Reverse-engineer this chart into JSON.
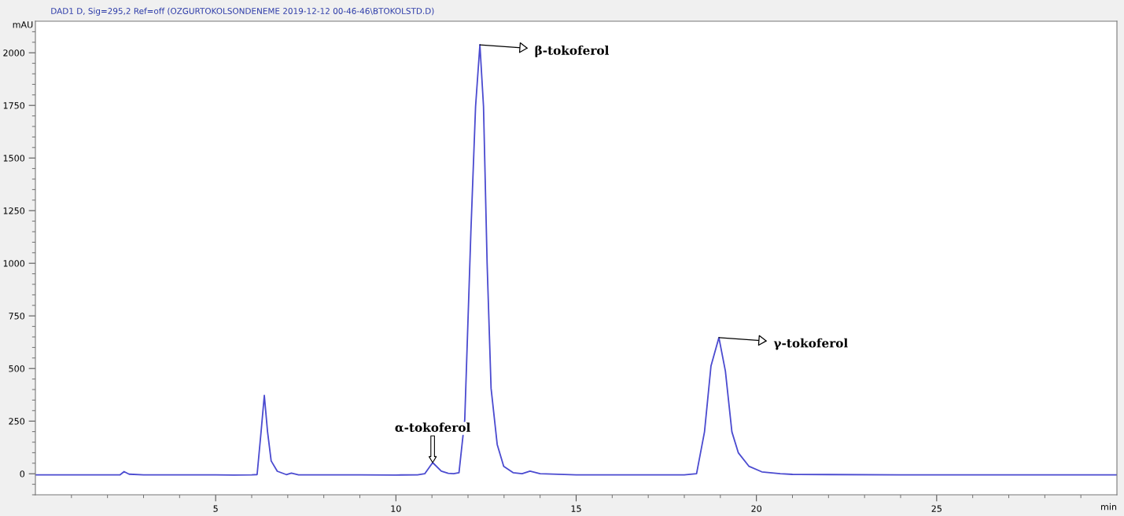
{
  "chart_data": {
    "type": "line",
    "title": "DAD1 D, Sig=295,2 Ref=off (OZGURTOKOLSONDENEME 2019-12-12 00-46-46\\BTOKOLSTD.D)",
    "xlabel": "min",
    "ylabel": "mAU",
    "xlim": [
      0,
      30
    ],
    "ylim": [
      -100,
      2150
    ],
    "xticks": [
      {
        "value": 1,
        "label": null
      },
      {
        "value": 2,
        "label": null
      },
      {
        "value": 3,
        "label": null
      },
      {
        "value": 4,
        "label": null
      },
      5,
      {
        "value": 6,
        "label": null
      },
      {
        "value": 7,
        "label": null
      },
      {
        "value": 8,
        "label": null
      },
      {
        "value": 9,
        "label": null
      },
      10,
      {
        "value": 11,
        "label": null
      },
      {
        "value": 12,
        "label": null
      },
      {
        "value": 13,
        "label": null
      },
      {
        "value": 14,
        "label": null
      },
      15,
      {
        "value": 16,
        "label": null
      },
      {
        "value": 17,
        "label": null
      },
      {
        "value": 18,
        "label": null
      },
      {
        "value": 19,
        "label": null
      },
      20,
      {
        "value": 21,
        "label": null
      },
      {
        "value": 22,
        "label": null
      },
      {
        "value": 23,
        "label": null
      },
      {
        "value": 24,
        "label": null
      },
      25,
      {
        "value": 26,
        "label": null
      },
      {
        "value": 27,
        "label": null
      },
      {
        "value": 28,
        "label": null
      },
      {
        "value": 29,
        "label": null
      }
    ],
    "yticks": [
      {
        "value": -100,
        "label": null
      },
      {
        "value": -50,
        "label": null
      },
      0,
      {
        "value": 50,
        "label": null
      },
      {
        "value": 100,
        "label": null
      },
      {
        "value": 150,
        "label": null
      },
      {
        "value": 200,
        "label": null
      },
      250,
      {
        "value": 300,
        "label": null
      },
      {
        "value": 350,
        "label": null
      },
      {
        "value": 400,
        "label": null
      },
      {
        "value": 450,
        "label": null
      },
      500,
      {
        "value": 550,
        "label": null
      },
      {
        "value": 600,
        "label": null
      },
      {
        "value": 650,
        "label": null
      },
      {
        "value": 700,
        "label": null
      },
      750,
      {
        "value": 800,
        "label": null
      },
      {
        "value": 850,
        "label": null
      },
      {
        "value": 900,
        "label": null
      },
      {
        "value": 950,
        "label": null
      },
      1000,
      {
        "value": 1050,
        "label": null
      },
      {
        "value": 1100,
        "label": null
      },
      {
        "value": 1150,
        "label": null
      },
      {
        "value": 1200,
        "label": null
      },
      1250,
      {
        "value": 1300,
        "label": null
      },
      {
        "value": 1350,
        "label": null
      },
      {
        "value": 1400,
        "label": null
      },
      {
        "value": 1450,
        "label": null
      },
      1500,
      {
        "value": 1550,
        "label": null
      },
      {
        "value": 1600,
        "label": null
      },
      {
        "value": 1650,
        "label": null
      },
      {
        "value": 1700,
        "label": null
      },
      1750,
      {
        "value": 1800,
        "label": null
      },
      {
        "value": 1850,
        "label": null
      },
      {
        "value": 1900,
        "label": null
      },
      {
        "value": 1950,
        "label": null
      },
      2000,
      {
        "value": 2050,
        "label": null
      },
      {
        "value": 2100,
        "label": null
      }
    ],
    "grid": false,
    "series": [
      {
        "color": "#4b4bd0",
        "x": [
          0,
          1,
          2,
          2.35,
          2.46,
          2.6,
          3,
          4,
          5,
          5.5,
          6,
          6.15,
          6.26,
          6.35,
          6.44,
          6.54,
          6.71,
          6.96,
          7.1,
          7.3,
          8,
          9,
          10,
          10.6,
          10.8,
          11.02,
          11.26,
          11.45,
          11.6,
          11.75,
          11.91,
          12.08,
          12.21,
          12.33,
          12.43,
          12.53,
          12.64,
          12.81,
          12.99,
          13.25,
          13.5,
          13.72,
          14.0,
          15,
          16,
          17,
          18,
          18.34,
          18.56,
          18.74,
          18.96,
          19.14,
          19.32,
          19.5,
          19.79,
          20.15,
          20.66,
          21,
          22,
          24,
          26,
          28,
          30
        ],
        "values": [
          -5,
          -5,
          -5,
          -5,
          10,
          -2,
          -5,
          -5,
          -5,
          -6,
          -5,
          -4,
          199,
          372,
          199,
          61,
          12,
          -4,
          3,
          -5,
          -5,
          -5,
          -6,
          -5,
          0,
          53,
          12,
          2,
          0,
          5,
          258,
          1150,
          1745,
          2038,
          1745,
          1001,
          406,
          139,
          35,
          5,
          0,
          12,
          0,
          -5,
          -5,
          -5,
          -5,
          0,
          199,
          512,
          647,
          487,
          199,
          99,
          36,
          9,
          0,
          -3,
          -4,
          -5,
          -5,
          -5,
          -5
        ]
      }
    ],
    "annotations": [
      {
        "text": "α-tokoferol",
        "x": 11.02,
        "y": 53
      },
      {
        "text": "β-tokoferol",
        "x": 12.33,
        "y": 2038
      },
      {
        "text": "γ-tokoferol",
        "x": 18.96,
        "y": 647
      }
    ]
  }
}
